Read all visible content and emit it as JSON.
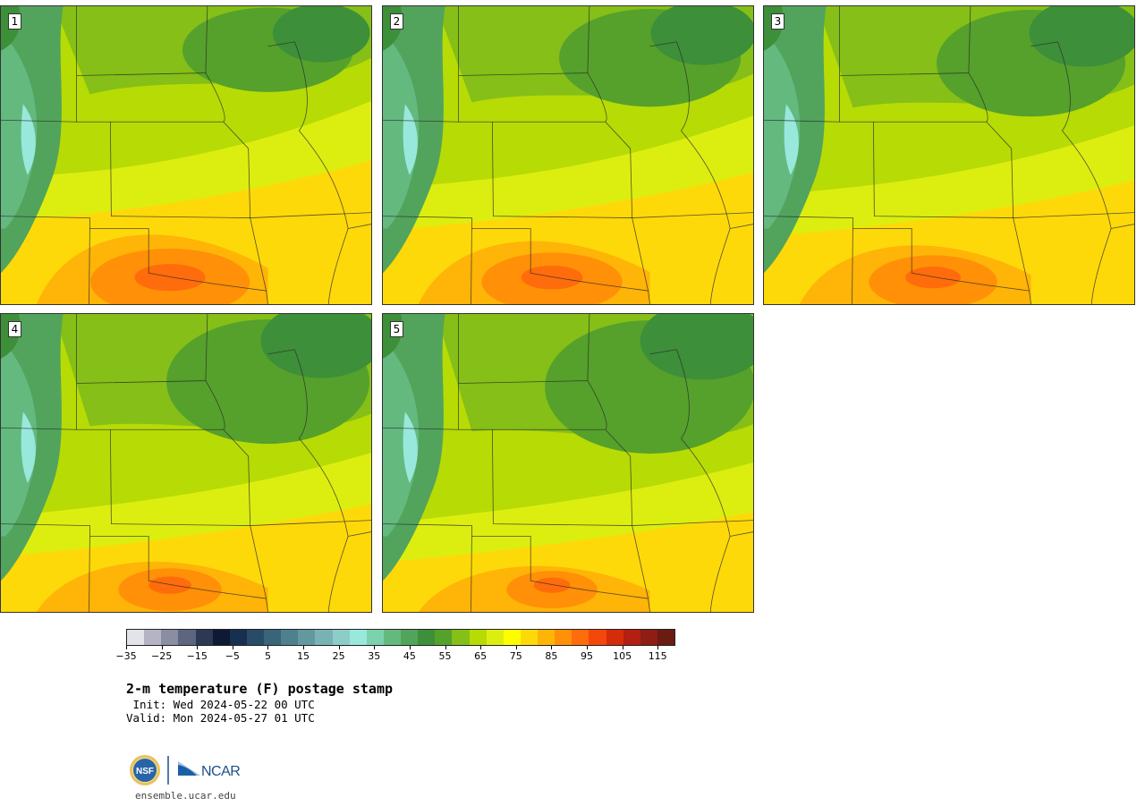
{
  "figure": {
    "title": "2-m temperature (F) postage stamp",
    "init_line": " Init: Wed 2024-05-22 00 UTC",
    "valid_line": "Valid: Mon 2024-05-27 01 UTC"
  },
  "panels": [
    {
      "label": "1",
      "warmth": 0.85
    },
    {
      "label": "2",
      "warmth": 0.7
    },
    {
      "label": "3",
      "warmth": 0.6
    },
    {
      "label": "4",
      "warmth": 0.4
    },
    {
      "label": "5",
      "warmth": 0.3
    }
  ],
  "colorbar": {
    "min": -35,
    "max": 120,
    "step": 5,
    "tick_labels": [
      "−35",
      "−25",
      "−15",
      "−5",
      "5",
      "15",
      "25",
      "35",
      "45",
      "55",
      "65",
      "75",
      "85",
      "95",
      "105",
      "115"
    ],
    "colors": [
      "#e3e3ea",
      "#b4b4c4",
      "#8a8ea3",
      "#5d6680",
      "#2c3954",
      "#0e1a33",
      "#18304f",
      "#284b68",
      "#3a6479",
      "#4f808d",
      "#64989f",
      "#79b2b4",
      "#8ccdc8",
      "#99e8dc",
      "#7cd2ac",
      "#64b97f",
      "#52a45c",
      "#3d8f39",
      "#55a12b",
      "#85bf17",
      "#b7db05",
      "#dcee10",
      "#fffe00",
      "#fed90a",
      "#ffb408",
      "#ff9007",
      "#ff6c0b",
      "#f4470c",
      "#d52c0a",
      "#b31f10",
      "#8e1d14",
      "#6a1b12"
    ]
  },
  "logos": {
    "nsf": "NSF",
    "ncar": "NCAR"
  },
  "footer": {
    "url": "ensemble.ucar.edu"
  }
}
